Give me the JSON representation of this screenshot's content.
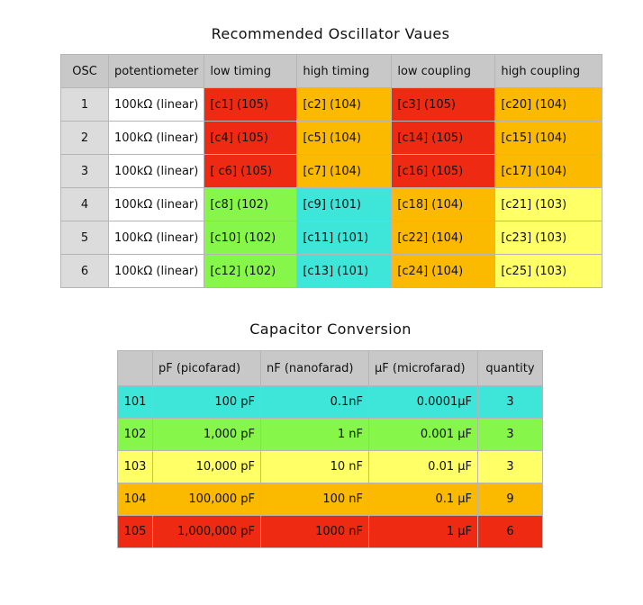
{
  "colors": {
    "red": "#ef2a12",
    "orange": "#fbb900",
    "green": "#86f64a",
    "cyan": "#3de6d8",
    "yellow": "#ffff66",
    "header_gray": "#c8c8c8",
    "osc_gray": "#dcdcdc"
  },
  "oscillator_table": {
    "title": "Recommended Oscillator Vaues",
    "headers": [
      "OSC",
      "potentiometer",
      "low timing",
      "high timing",
      "low coupling",
      "high coupling"
    ],
    "rows": [
      {
        "osc": "1",
        "pot": "100kΩ (linear)",
        "cells": [
          {
            "text": "[c1] (105)",
            "color": "red"
          },
          {
            "text": "[c2] (104)",
            "color": "orange"
          },
          {
            "text": "[c3] (105)",
            "color": "red"
          },
          {
            "text": "[c20]  (104)",
            "color": "orange"
          }
        ]
      },
      {
        "osc": "2",
        "pot": "100kΩ (linear)",
        "cells": [
          {
            "text": "[c4] (105)",
            "color": "red"
          },
          {
            "text": "[c5] (104)",
            "color": "orange"
          },
          {
            "text": "[c14] (105)",
            "color": "red"
          },
          {
            "text": "[c15] (104)",
            "color": "orange"
          }
        ]
      },
      {
        "osc": "3",
        "pot": "100kΩ (linear)",
        "cells": [
          {
            "text": "[ c6] (105)",
            "color": "red"
          },
          {
            "text": "[c7] (104)",
            "color": "orange"
          },
          {
            "text": "[c16] (105)",
            "color": "red"
          },
          {
            "text": "[c17] (104)",
            "color": "orange"
          }
        ]
      },
      {
        "osc": "4",
        "pot": "100kΩ (linear)",
        "cells": [
          {
            "text": "[c8] (102)",
            "color": "green"
          },
          {
            "text": "[c9] (101)",
            "color": "cyan"
          },
          {
            "text": "[c18] (104)",
            "color": "orange"
          },
          {
            "text": "[c21] (103)",
            "color": "yellow"
          }
        ]
      },
      {
        "osc": "5",
        "pot": "100kΩ (linear)",
        "cells": [
          {
            "text": "[c10] (102)",
            "color": "green"
          },
          {
            "text": "[c11] (101)",
            "color": "cyan"
          },
          {
            "text": "[c22] (104)",
            "color": "orange"
          },
          {
            "text": "[c23] (103)",
            "color": "yellow"
          }
        ]
      },
      {
        "osc": "6",
        "pot": "100kΩ (linear)",
        "cells": [
          {
            "text": "[c12] (102)",
            "color": "green"
          },
          {
            "text": "[c13] (101)",
            "color": "cyan"
          },
          {
            "text": "[c24] (104)",
            "color": "orange"
          },
          {
            "text": "[c25] (103)",
            "color": "yellow"
          }
        ]
      }
    ]
  },
  "capacitor_table": {
    "title": "Capacitor Conversion",
    "headers": [
      "",
      "pF (picofarad)",
      "nF (nanofarad)",
      "µF (microfarad)",
      "quantity"
    ],
    "rows": [
      {
        "code": "101",
        "pf": "100 pF",
        "nf": "0.1nF",
        "uf": "0.0001µF",
        "qty": "3",
        "color": "cyan"
      },
      {
        "code": "102",
        "pf": "1,000 pF",
        "nf": "1 nF",
        "uf": "0.001 µF",
        "qty": "3",
        "color": "green"
      },
      {
        "code": "103",
        "pf": "10,000 pF",
        "nf": "10 nF",
        "uf": "0.01 µF",
        "qty": "3",
        "color": "yellow"
      },
      {
        "code": "104",
        "pf": "100,000 pF",
        "nf": "100 nF",
        "uf": "0.1 µF",
        "qty": "9",
        "color": "orange"
      },
      {
        "code": "105",
        "pf": "1,000,000 pF",
        "nf": "1000 nF",
        "uf": "1 µF",
        "qty": "6",
        "color": "red"
      }
    ]
  }
}
